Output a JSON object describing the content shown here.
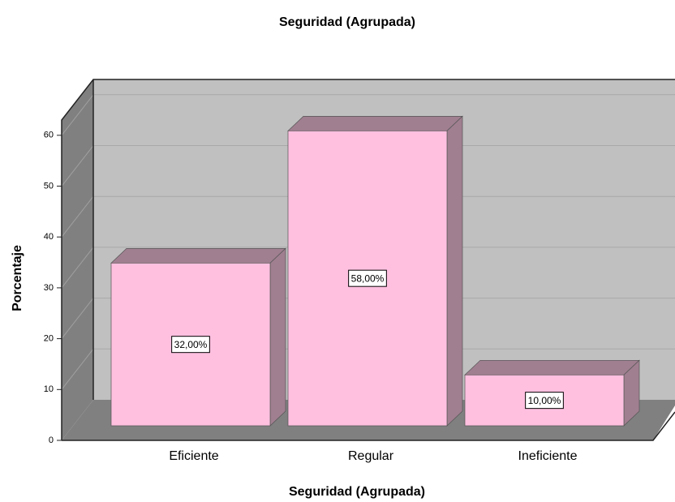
{
  "chart_data": {
    "type": "bar",
    "title": "Seguridad (Agrupada)",
    "x_label": "Seguridad (Agrupada)",
    "y_label": "Porcentaje",
    "categories": [
      "Eficiente",
      "Regular",
      "Ineficiente"
    ],
    "values": [
      32,
      58,
      10
    ],
    "value_labels": [
      "32,00%",
      "58,00%",
      "10,00%"
    ],
    "color": "#ffc0e0",
    "ylim": [
      0,
      63
    ],
    "yticks": [
      0,
      10,
      20,
      30,
      40,
      50,
      60
    ],
    "grid": true
  }
}
